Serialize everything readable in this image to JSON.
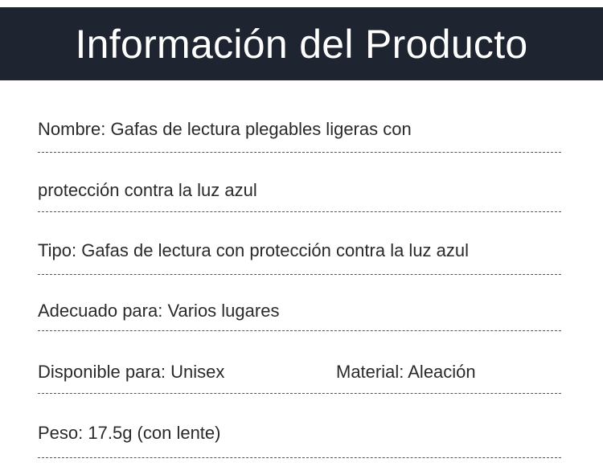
{
  "header": {
    "title": "Información del Producto",
    "background": "#1e2530"
  },
  "rows": [
    "Nombre: Gafas de lectura plegables ligeras con",
    "protección contra la luz azul",
    "Tipo: Gafas de lectura con protección contra la luz azul",
    "Adecuado para: Varios lugares",
    "Disponible para: Unisex",
    "Peso: 17.5g (con lente)"
  ],
  "row5_col2": "Material: Aleación"
}
